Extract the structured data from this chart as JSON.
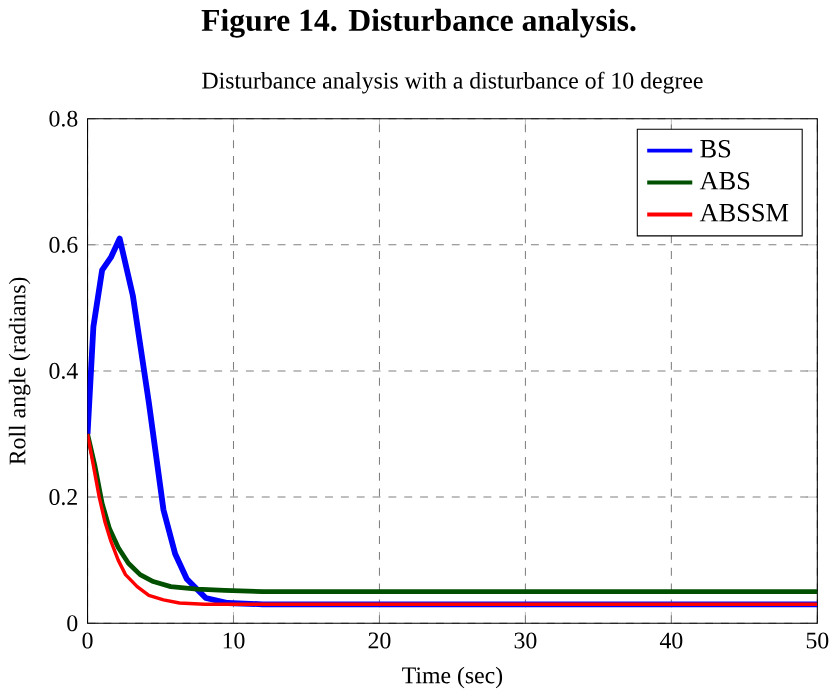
{
  "chart_data": {
    "type": "line",
    "title": "Figure 14. Disturbance analysis.",
    "subtitle": "Disturbance analysis with a disturbance of 10 degree",
    "xlabel": "Time (sec)",
    "ylabel": "Roll angle (radians)",
    "xlim": [
      0,
      50
    ],
    "ylim": [
      0,
      0.8
    ],
    "xticks": [
      0,
      10,
      20,
      30,
      40,
      50
    ],
    "yticks": [
      0,
      0.2,
      0.4,
      0.6,
      0.8
    ],
    "grid": true,
    "legend": "top right",
    "line_style": "solid",
    "series": [
      {
        "name": "BS",
        "color": "#0000ff",
        "x": [
          0,
          0.4,
          1.0,
          1.6,
          2.2,
          3.1,
          4.2,
          5.2,
          6.0,
          6.8,
          8.1,
          9.6,
          12,
          50
        ],
        "values": [
          0.3,
          0.47,
          0.56,
          0.58,
          0.61,
          0.52,
          0.35,
          0.18,
          0.11,
          0.07,
          0.04,
          0.032,
          0.03,
          0.03
        ]
      },
      {
        "name": "ABS",
        "color": "#005000",
        "x": [
          0,
          0.5,
          1.0,
          1.5,
          2.1,
          2.8,
          3.6,
          4.5,
          5.7,
          7.5,
          9.4,
          12,
          50
        ],
        "values": [
          0.3,
          0.25,
          0.19,
          0.15,
          0.12,
          0.095,
          0.077,
          0.066,
          0.058,
          0.054,
          0.052,
          0.05,
          0.05
        ]
      },
      {
        "name": "ABSSM",
        "color": "#ff0000",
        "x": [
          0,
          0.4,
          0.8,
          1.2,
          1.6,
          2.1,
          2.6,
          3.4,
          4.2,
          5.2,
          6.3,
          8,
          50
        ],
        "values": [
          0.3,
          0.25,
          0.2,
          0.16,
          0.13,
          0.1,
          0.077,
          0.058,
          0.044,
          0.037,
          0.032,
          0.03,
          0.03
        ]
      }
    ]
  }
}
